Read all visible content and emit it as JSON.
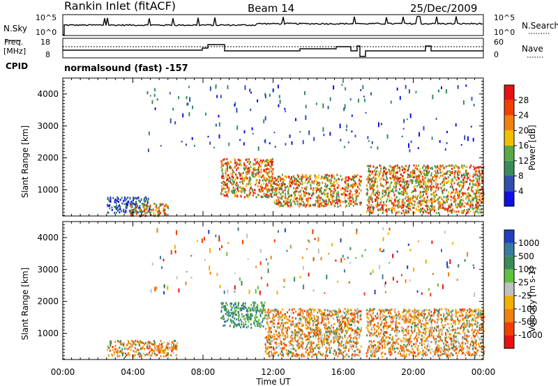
{
  "header": {
    "site": "Rankin Inlet (fitACF)",
    "beam": "Beam 14",
    "date": "25/Dec/2009"
  },
  "noise_panel": {
    "left_label": "N.Sky",
    "right_label": "N.Search",
    "left_ticks": [
      "10^5",
      "10^0"
    ],
    "right_ticks": [
      "10^5",
      "10^0"
    ]
  },
  "freq_panel": {
    "left_label_top": "Freq.",
    "left_label_bottom": "[MHz]",
    "right_label": "Nave",
    "left_ticks": [
      "18",
      "8"
    ],
    "right_ticks": [
      "60",
      "0"
    ]
  },
  "cpid": {
    "label": "CPID",
    "value": "normalsound (fast) -157"
  },
  "chart_data": [
    {
      "type": "heatmap",
      "name": "power",
      "ylabel": "Slant Range [km]",
      "xlabel": "Time UT",
      "xlim": [
        "00:00",
        "24:00"
      ],
      "ylim": [
        180,
        4500
      ],
      "y_ticks": [
        "1000",
        "2000",
        "3000",
        "4000"
      ],
      "x_ticks": [
        "00:00",
        "04:00",
        "08:00",
        "12:00",
        "16:00",
        "20:00",
        "00:00"
      ],
      "colorbar": {
        "label": "Power [dB]",
        "tick_labels": [
          "4",
          "8",
          "12",
          "16",
          "20",
          "24",
          "28"
        ],
        "colors": [
          "#1010e0",
          "#3050b0",
          "#3a8a5a",
          "#5aa848",
          "#f0c000",
          "#f08010",
          "#f04000",
          "#e81010"
        ]
      },
      "data_gap_hours": [
        17.0,
        17.3
      ],
      "regions": [
        {
          "t": [
            2.5,
            5.0
          ],
          "range_km": [
            300,
            800
          ],
          "level": "low"
        },
        {
          "t": [
            3.8,
            6.0
          ],
          "range_km": [
            200,
            600
          ],
          "level": "high"
        },
        {
          "t": [
            9.0,
            12.0
          ],
          "range_km": [
            800,
            2000
          ],
          "level": "high"
        },
        {
          "t": [
            12.0,
            17.0
          ],
          "range_km": [
            500,
            1500
          ],
          "level": "high"
        },
        {
          "t": [
            17.3,
            24.0
          ],
          "range_km": [
            300,
            1800
          ],
          "level": "very high"
        }
      ]
    },
    {
      "type": "heatmap",
      "name": "velocity",
      "ylabel": "Slant Range [km]",
      "xlabel": "Time UT",
      "xlim": [
        "00:00",
        "24:00"
      ],
      "ylim": [
        180,
        4500
      ],
      "y_ticks": [
        "1000",
        "2000",
        "3000",
        "4000"
      ],
      "x_ticks": [
        "00:00",
        "04:00",
        "08:00",
        "12:00",
        "16:00",
        "20:00",
        "00:00"
      ],
      "colorbar": {
        "label": "Velocity [m s-1]",
        "tick_labels": [
          "1000",
          "500",
          "100",
          "25",
          "-25",
          "-100",
          "-500",
          "-1000"
        ],
        "colors": [
          "#2040c0",
          "#3a7aa0",
          "#3a8a5a",
          "#60c040",
          "#c0c0c0",
          "#f0b000",
          "#f08010",
          "#f04000",
          "#e81010"
        ]
      },
      "data_gap_hours": [
        17.0,
        17.3
      ],
      "regions": [
        {
          "t": [
            2.5,
            6.5
          ],
          "range_km": [
            300,
            800
          ],
          "level": "-100 to -500"
        },
        {
          "t": [
            9.0,
            11.5
          ],
          "range_km": [
            1200,
            2000
          ],
          "level": "100 to 500"
        },
        {
          "t": [
            11.5,
            24.0
          ],
          "range_km": [
            300,
            1800
          ],
          "level": "-100 to -500"
        }
      ]
    }
  ],
  "xaxis_label": "Time UT"
}
